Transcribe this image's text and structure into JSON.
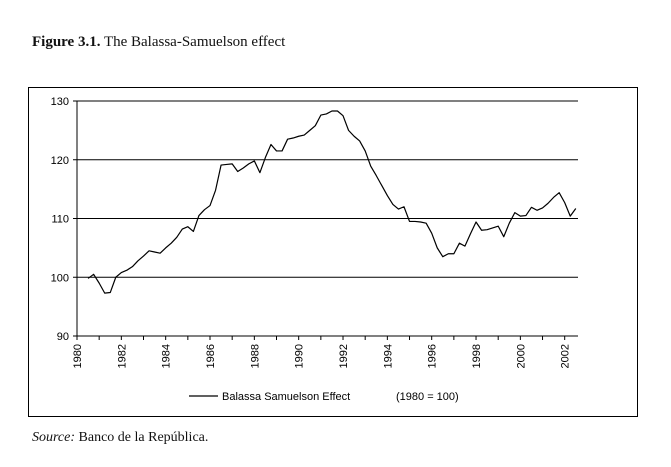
{
  "figure": {
    "label": "Figure 3.1.",
    "caption": " The Balassa-Samuelson effect"
  },
  "source": {
    "label": "Source:",
    "text": " Banco de la República."
  },
  "chart_data": {
    "type": "line",
    "title": "",
    "xlabel": "",
    "ylabel": "",
    "xlim": [
      1980,
      2002.6
    ],
    "ylim": [
      90,
      130
    ],
    "y_ticks": [
      90,
      100,
      110,
      120,
      130
    ],
    "x_ticks": [
      1980,
      1982,
      1984,
      1986,
      1988,
      1990,
      1992,
      1994,
      1996,
      1998,
      2000,
      2002
    ],
    "x_tick_labels": [
      "1980",
      "1982",
      "1984",
      "1986",
      "1988",
      "1990",
      "1992",
      "1994",
      "1996",
      "1998",
      "2000",
      "2002"
    ],
    "y_tick_labels": [
      "90",
      "100",
      "110",
      "120",
      "130"
    ],
    "grid": "horizontal",
    "legend": {
      "position": "bottom",
      "entry": "Balassa Samuelson Effect",
      "note": "(1980 = 100)"
    },
    "series": [
      {
        "name": "Balassa Samuelson Effect",
        "color": "#000000",
        "x": [
          1980.5,
          1980.75,
          1981.0,
          1981.25,
          1981.5,
          1981.75,
          1982.0,
          1982.25,
          1982.5,
          1982.75,
          1983.0,
          1983.25,
          1983.5,
          1983.75,
          1984.0,
          1984.25,
          1984.5,
          1984.75,
          1985.0,
          1985.25,
          1985.5,
          1985.75,
          1986.0,
          1986.25,
          1986.5,
          1986.75,
          1987.0,
          1987.25,
          1987.5,
          1987.75,
          1988.0,
          1988.25,
          1988.5,
          1988.75,
          1989.0,
          1989.25,
          1989.5,
          1989.75,
          1990.0,
          1990.25,
          1990.5,
          1990.75,
          1991.0,
          1991.25,
          1991.5,
          1991.75,
          1992.0,
          1992.25,
          1992.5,
          1992.75,
          1993.0,
          1993.25,
          1993.5,
          1993.75,
          1994.0,
          1994.25,
          1994.5,
          1994.75,
          1995.0,
          1995.25,
          1995.5,
          1995.75,
          1996.0,
          1996.25,
          1996.5,
          1996.75,
          1997.0,
          1997.25,
          1997.5,
          1997.75,
          1998.0,
          1998.25,
          1998.5,
          1998.75,
          1999.0,
          1999.25,
          1999.5,
          1999.75,
          2000.0,
          2000.25,
          2000.5,
          2000.75,
          2001.0,
          2001.25,
          2001.5,
          2001.75,
          2002.0,
          2002.25,
          2002.5
        ],
        "values": [
          99.8,
          100.5,
          99.0,
          97.3,
          97.4,
          100.0,
          100.8,
          101.2,
          101.8,
          102.8,
          103.6,
          104.5,
          104.3,
          104.1,
          105.0,
          105.8,
          106.8,
          108.2,
          108.6,
          107.8,
          110.5,
          111.5,
          112.2,
          114.8,
          119.1,
          119.2,
          119.3,
          118.0,
          118.6,
          119.3,
          119.8,
          117.8,
          120.4,
          122.6,
          121.5,
          121.5,
          123.5,
          123.7,
          124.0,
          124.2,
          125.0,
          125.8,
          127.6,
          127.8,
          128.3,
          128.3,
          127.5,
          125.0,
          124.0,
          123.2,
          121.5,
          118.9,
          117.3,
          115.6,
          113.9,
          112.4,
          111.6,
          112.0,
          109.5,
          109.5,
          109.4,
          109.2,
          107.5,
          105.0,
          103.5,
          104.0,
          104.0,
          105.8,
          105.3,
          107.4,
          109.4,
          108.0,
          108.1,
          108.4,
          108.7,
          106.9,
          109.2,
          111.0,
          110.4,
          110.5,
          111.9,
          111.4,
          111.8,
          112.6,
          113.6,
          114.4,
          112.7,
          110.4,
          111.7
        ]
      }
    ]
  }
}
